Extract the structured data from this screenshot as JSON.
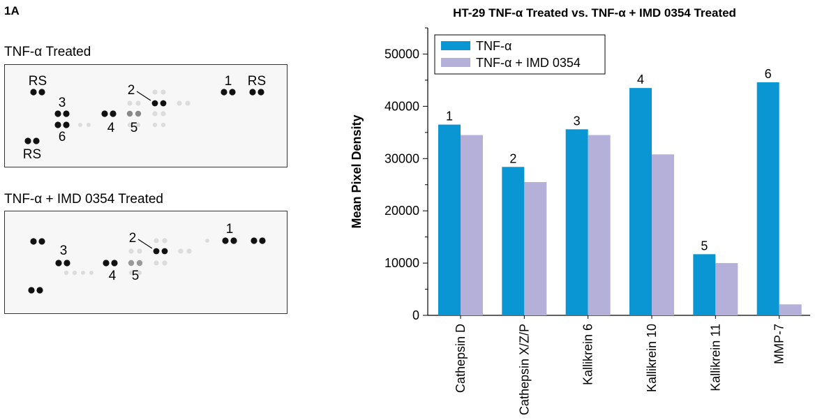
{
  "figure_label": "1A",
  "blots": [
    {
      "title": "TNF-α Treated",
      "labels": [
        "RS",
        "1",
        "RS",
        "2",
        "3",
        "4",
        "5",
        "6",
        "RS"
      ]
    },
    {
      "title": "TNF-α + IMD 0354 Treated",
      "labels": [
        "1",
        "2",
        "3",
        "4",
        "5"
      ]
    }
  ],
  "chart_data": {
    "type": "bar",
    "title": "HT-29 TNF-α Treated vs. TNF-α + IMD 0354 Treated",
    "xlabel": "",
    "ylabel": "Mean Pixel Density",
    "ylim": [
      0,
      55000
    ],
    "yticks": [
      0,
      10000,
      20000,
      30000,
      40000,
      50000
    ],
    "categories": [
      "Cathepsin D",
      "Cathepsin X/Z/P",
      "Kallikrein 6",
      "Kallikrein 10",
      "Kallikrein 11",
      "MMP-7"
    ],
    "bar_labels": [
      "1",
      "2",
      "3",
      "4",
      "5",
      "6"
    ],
    "series": [
      {
        "name": "TNF-α",
        "color": "#0a96d2",
        "values": [
          36500,
          28400,
          35600,
          43500,
          11700,
          44600
        ]
      },
      {
        "name": "TNF-α + IMD 0354",
        "color": "#b4b0da",
        "values": [
          34500,
          25500,
          34500,
          30800,
          10000,
          2100
        ]
      }
    ],
    "legend_position": "top-left",
    "grid": false
  }
}
